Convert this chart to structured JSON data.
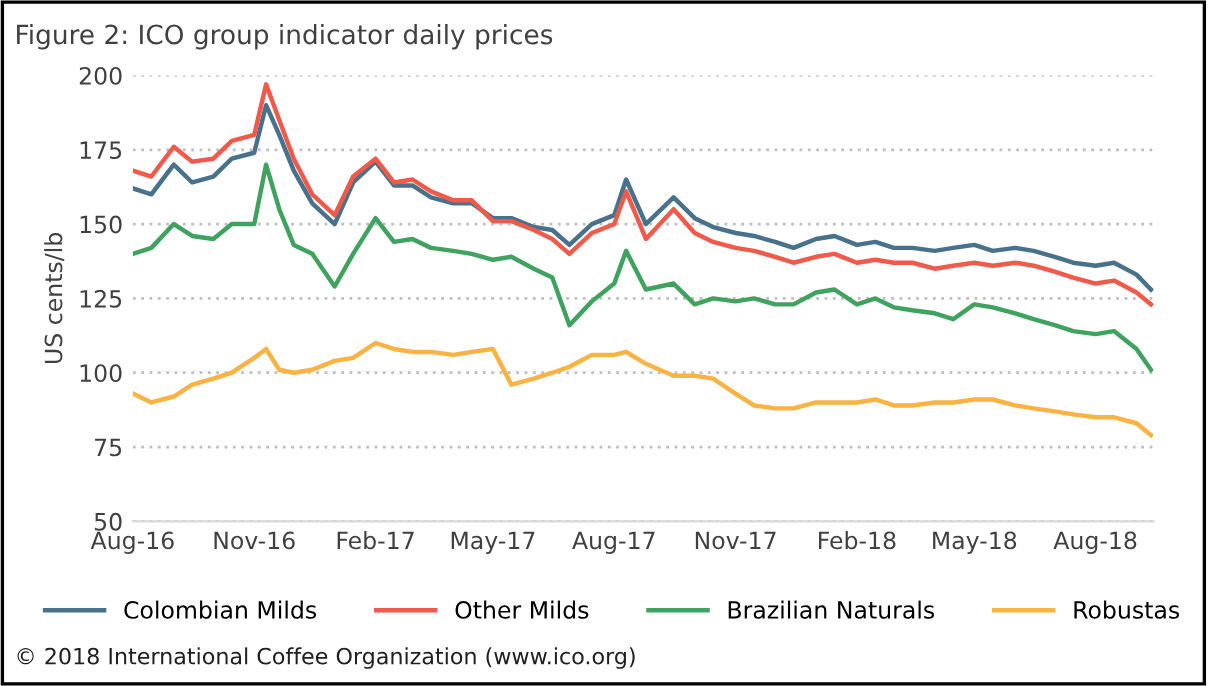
{
  "chart_data": {
    "type": "line",
    "title": "Figure 2: ICO group indicator daily prices",
    "ylabel": "US cents/lb",
    "x": [
      "2016-08-01",
      "2016-08-15",
      "2016-09-01",
      "2016-09-15",
      "2016-10-01",
      "2016-10-15",
      "2016-11-01",
      "2016-11-10",
      "2016-11-20",
      "2016-12-01",
      "2016-12-15",
      "2017-01-01",
      "2017-01-15",
      "2017-02-01",
      "2017-02-15",
      "2017-03-01",
      "2017-03-15",
      "2017-04-01",
      "2017-04-15",
      "2017-05-01",
      "2017-05-15",
      "2017-06-01",
      "2017-06-15",
      "2017-06-28",
      "2017-07-15",
      "2017-08-01",
      "2017-08-10",
      "2017-08-25",
      "2017-09-15",
      "2017-10-01",
      "2017-10-15",
      "2017-11-01",
      "2017-11-15",
      "2017-12-01",
      "2017-12-15",
      "2018-01-01",
      "2018-01-15",
      "2018-02-01",
      "2018-02-15",
      "2018-03-01",
      "2018-03-15",
      "2018-04-01",
      "2018-04-15",
      "2018-05-01",
      "2018-05-15",
      "2018-06-01",
      "2018-06-15",
      "2018-07-01",
      "2018-07-15",
      "2018-08-01",
      "2018-08-15",
      "2018-09-01",
      "2018-09-12"
    ],
    "series": [
      {
        "name": "Colombian Milds",
        "color": "#48718b",
        "values": [
          162,
          160,
          170,
          164,
          166,
          172,
          174,
          190,
          180,
          168,
          157,
          150,
          164,
          171,
          163,
          163,
          159,
          157,
          157,
          152,
          152,
          149,
          148,
          143,
          150,
          153,
          165,
          150,
          159,
          152,
          149,
          147,
          146,
          144,
          142,
          145,
          146,
          143,
          144,
          142,
          142,
          141,
          142,
          143,
          141,
          142,
          141,
          139,
          137,
          136,
          137,
          133,
          128
        ]
      },
      {
        "name": "Other Milds",
        "color": "#f05a4a",
        "values": [
          168,
          166,
          176,
          171,
          172,
          178,
          180,
          197,
          185,
          172,
          160,
          153,
          166,
          172,
          164,
          165,
          161,
          158,
          158,
          151,
          151,
          148,
          145,
          140,
          147,
          150,
          161,
          145,
          155,
          147,
          144,
          142,
          141,
          139,
          137,
          139,
          140,
          137,
          138,
          137,
          137,
          135,
          136,
          137,
          136,
          137,
          136,
          134,
          132,
          130,
          131,
          127,
          123
        ]
      },
      {
        "name": "Brazilian Naturals",
        "color": "#3fa35f",
        "values": [
          140,
          142,
          150,
          146,
          145,
          150,
          150,
          170,
          155,
          143,
          140,
          129,
          140,
          152,
          144,
          145,
          142,
          141,
          140,
          138,
          139,
          135,
          132,
          116,
          124,
          130,
          141,
          128,
          130,
          123,
          125,
          124,
          125,
          123,
          123,
          127,
          128,
          123,
          125,
          122,
          121,
          120,
          118,
          123,
          122,
          120,
          118,
          116,
          114,
          113,
          114,
          108,
          101
        ]
      },
      {
        "name": "Robustas",
        "color": "#f9b342",
        "values": [
          93,
          90,
          92,
          96,
          98,
          100,
          105,
          108,
          101,
          100,
          101,
          104,
          105,
          110,
          108,
          107,
          107,
          106,
          107,
          108,
          96,
          98,
          100,
          102,
          106,
          106,
          107,
          103,
          99,
          99,
          98,
          93,
          89,
          88,
          88,
          90,
          90,
          90,
          91,
          89,
          89,
          90,
          90,
          91,
          91,
          89,
          88,
          87,
          86,
          85,
          85,
          83,
          79
        ]
      }
    ],
    "xlim": [
      "2016-08-01",
      "2018-09-14"
    ],
    "xticks": [
      {
        "value": "2016-08-01",
        "label": "Aug-16"
      },
      {
        "value": "2016-11-01",
        "label": "Nov-16"
      },
      {
        "value": "2017-02-01",
        "label": "Feb-17"
      },
      {
        "value": "2017-05-01",
        "label": "May-17"
      },
      {
        "value": "2017-08-01",
        "label": "Aug-17"
      },
      {
        "value": "2017-11-01",
        "label": "Nov-17"
      },
      {
        "value": "2018-02-01",
        "label": "Feb-18"
      },
      {
        "value": "2018-05-01",
        "label": "May-18"
      },
      {
        "value": "2018-08-01",
        "label": "Aug-18"
      }
    ],
    "ylim": [
      50,
      200
    ],
    "yticks": [
      50,
      75,
      100,
      125,
      150,
      175,
      200
    ],
    "grid": "y",
    "legend": "bottom",
    "marker": "none",
    "line_style": "solid",
    "annotations": [
      "© 2018 International Coffee Organization (www.ico.org)"
    ]
  }
}
